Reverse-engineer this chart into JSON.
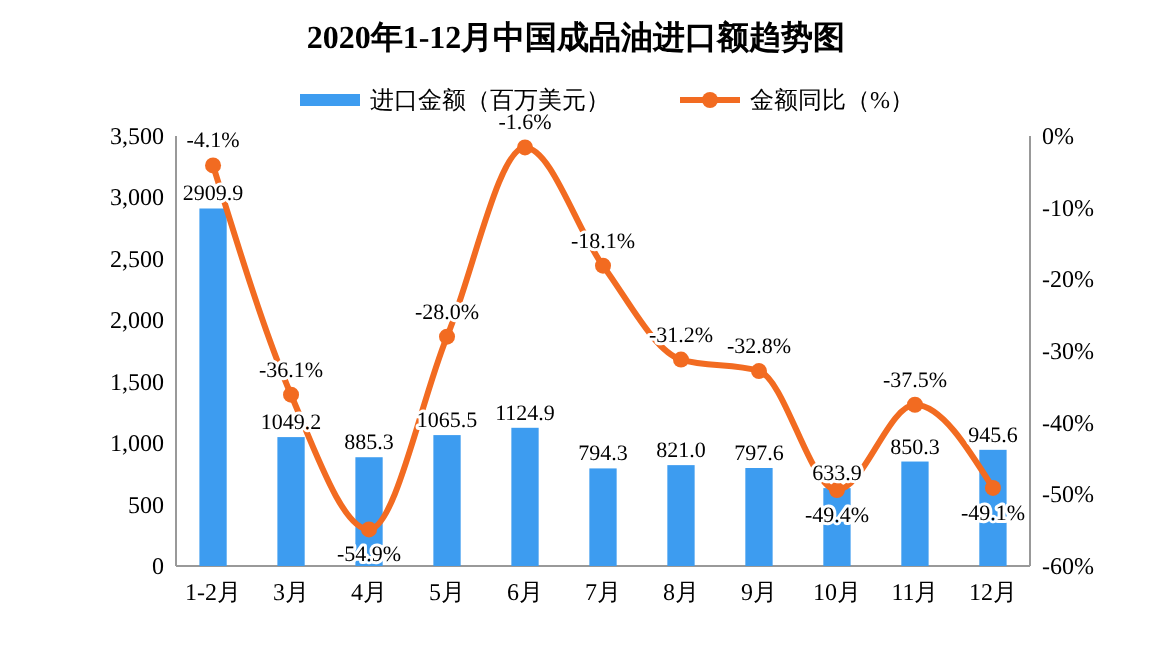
{
  "chart_data": {
    "type": "bar",
    "title": "2020年1-12月中国成品油进口额趋势图",
    "categories": [
      "1-2月",
      "3月",
      "4月",
      "5月",
      "6月",
      "7月",
      "8月",
      "9月",
      "10月",
      "11月",
      "12月"
    ],
    "series": [
      {
        "name": "进口金额（百万美元）",
        "color": "#3d9cf0",
        "values": [
          2909.9,
          1049.2,
          885.3,
          1065.5,
          1124.9,
          794.3,
          821.0,
          797.6,
          633.9,
          850.3,
          945.6
        ],
        "value_labels": [
          "2909.9",
          "1049.2",
          "885.3",
          "1065.5",
          "1124.9",
          "794.3",
          "821.0",
          "797.6",
          "633.9",
          "850.3",
          "945.6"
        ]
      },
      {
        "name": "金额同比（%）",
        "type": "line",
        "axis": "y2",
        "color": "#f26b21",
        "values": [
          -4.1,
          -36.1,
          -54.9,
          -28.0,
          -1.6,
          -18.1,
          -31.2,
          -32.8,
          -49.4,
          -37.5,
          -49.1
        ],
        "value_labels": [
          "-4.1%",
          "-36.1%",
          "-54.9%",
          "-28.0%",
          "-1.6%",
          "-18.1%",
          "-31.2%",
          "-32.8%",
          "-49.4%",
          "-37.5%",
          "-49.1%"
        ]
      }
    ],
    "ylim": [
      0,
      3500
    ],
    "yticks": [
      0,
      500,
      {
        "value": 1000,
        "label": "1,000"
      },
      {
        "value": 1500,
        "label": "1,500"
      },
      {
        "value": 2000,
        "label": "2,000"
      },
      {
        "value": 2500,
        "label": "2,500"
      },
      {
        "value": 3000,
        "label": "3,000"
      },
      {
        "value": 3500,
        "label": "3,500"
      }
    ],
    "y2lim": [
      -60,
      0
    ],
    "y2ticks": [
      {
        "value": -60,
        "label": "-60%"
      },
      {
        "value": -50,
        "label": "-50%"
      },
      {
        "value": -40,
        "label": "-40%"
      },
      {
        "value": -30,
        "label": "-30%"
      },
      {
        "value": -20,
        "label": "-20%"
      },
      {
        "value": -10,
        "label": "-10%"
      },
      {
        "value": 0,
        "label": "0%"
      }
    ],
    "marker": "circle",
    "legend": "top",
    "grid": false
  }
}
